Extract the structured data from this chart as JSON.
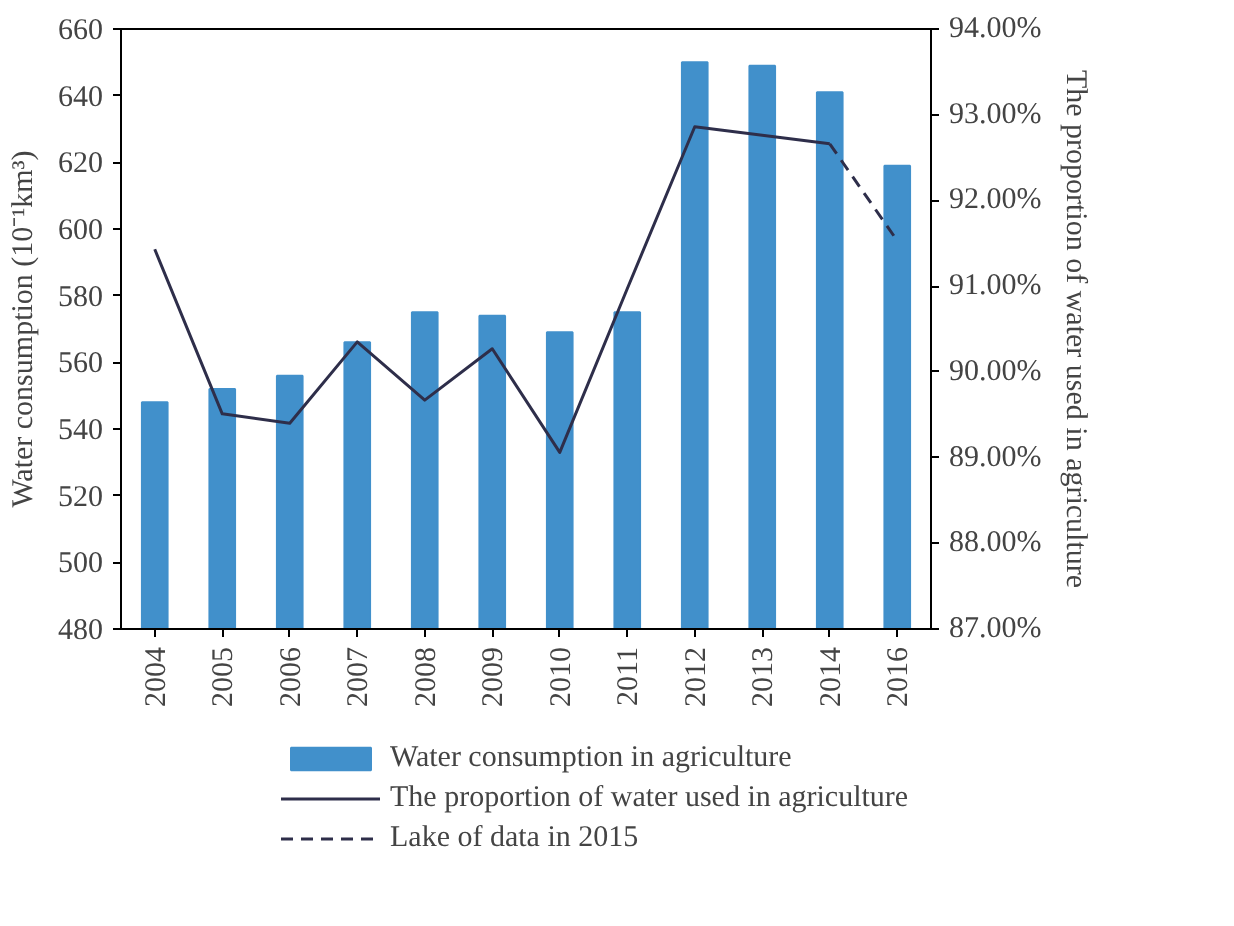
{
  "chart_data": {
    "type": "bar",
    "categories": [
      "2004",
      "2005",
      "2006",
      "2007",
      "2008",
      "2009",
      "2010",
      "2011",
      "2012",
      "2013",
      "2014",
      "2016"
    ],
    "ylabel": "Water consumption (10⁻¹km³)",
    "y2label": "The proportion of water used in agriculture",
    "ylim": [
      480,
      660
    ],
    "yticks": [
      480,
      500,
      520,
      540,
      560,
      580,
      600,
      620,
      640,
      660
    ],
    "y2lim": [
      87,
      94
    ],
    "y2ticks": [
      {
        "value": 87,
        "label": "87.00%"
      },
      {
        "value": 88,
        "label": "88.00%"
      },
      {
        "value": 89,
        "label": "89.00%"
      },
      {
        "value": 90,
        "label": "90.00%"
      },
      {
        "value": 91,
        "label": "91.00%"
      },
      {
        "value": 92,
        "label": "92.00%"
      },
      {
        "value": 93,
        "label": "93.00%"
      },
      {
        "value": 94,
        "label": "94.00%"
      }
    ],
    "grid": false,
    "legend": "bottom",
    "series": [
      {
        "name": "Water consumption in agriculture",
        "color": "#4190cb",
        "values": [
          548,
          552,
          556,
          566,
          575,
          574,
          569,
          575,
          650,
          649,
          641,
          619
        ]
      },
      {
        "name": "The proportion of water used in agriculture",
        "type": "line",
        "axis": "y2",
        "line_style": "solid",
        "color": "#2e2e4a",
        "values": [
          91.43,
          89.51,
          89.4,
          90.35,
          89.67,
          90.27,
          89.06,
          90.97,
          92.86,
          92.76,
          92.66,
          null
        ]
      },
      {
        "name": "Lake of data in 2015",
        "type": "line",
        "axis": "y2",
        "line_style": "dashed",
        "color": "#2e2e4a",
        "values": [
          null,
          null,
          null,
          null,
          null,
          null,
          null,
          null,
          null,
          null,
          92.66,
          91.53
        ]
      }
    ]
  }
}
